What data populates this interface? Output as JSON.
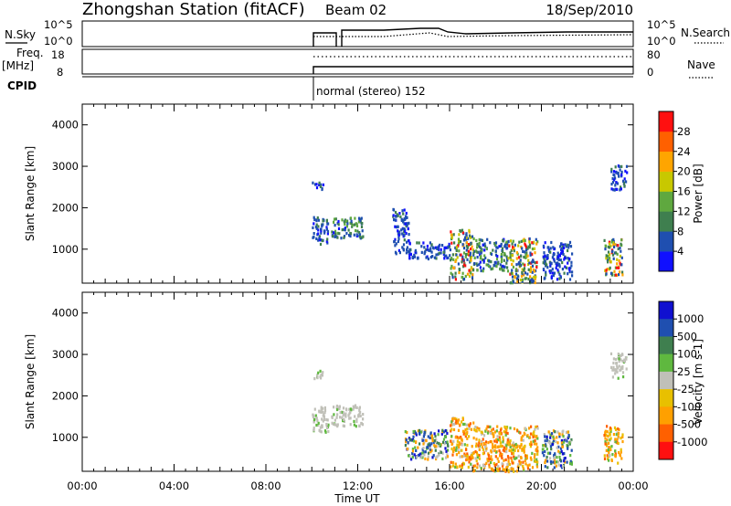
{
  "header": {
    "station": "Zhongshan Station (fitACF)",
    "beam": "Beam 02",
    "date": "18/Sep/2010"
  },
  "top_panel": {
    "nsky_label": "N.Sky",
    "nsky_ticks": [
      "10^5",
      "10^0"
    ],
    "nsearch_label": "N.Search",
    "nsearch_ticks": [
      "10^5",
      "10^0"
    ],
    "freq_label": "Freq.",
    "freq_unit": "[MHz]",
    "freq_ticks": [
      "18",
      "8"
    ],
    "nave_label": "Nave",
    "nave_ticks": [
      "80",
      "0"
    ],
    "cpid_label": "CPID",
    "cpid_text": "normal (stereo) 152"
  },
  "colors": {
    "power": [
      "#1010ff",
      "#1f4fb0",
      "#3f7f4f",
      "#5fa83f",
      "#c8c800",
      "#ffa500",
      "#ff6000",
      "#ff1010"
    ],
    "velocity": [
      "#ff1010",
      "#ff6000",
      "#ffa000",
      "#e8c000",
      "#c0c0b8",
      "#5fb83f",
      "#3f7f4f",
      "#1f4fb0",
      "#1010d0"
    ]
  },
  "chart_data": [
    {
      "type": "heatmap",
      "title": "Power",
      "ylabel": "Slant Range [km]",
      "xlabel": "Time UT",
      "xlim": [
        "00:00",
        "24:00"
      ],
      "ylim": [
        180,
        4500
      ],
      "x_ticks": [
        "00:00",
        "04:00",
        "08:00",
        "12:00",
        "16:00",
        "20:00",
        "00:00"
      ],
      "y_ticks": [
        1000,
        2000,
        3000,
        4000
      ],
      "colorbar": {
        "label": "Power [dB]",
        "ticks": [
          "4",
          "8",
          "12",
          "16",
          "20",
          "24",
          "28"
        ],
        "range": [
          0,
          30
        ]
      },
      "regions": [
        {
          "t": [
            10.0,
            10.5
          ],
          "r": [
            2450,
            2650
          ],
          "level": "low"
        },
        {
          "t": [
            10.0,
            10.7
          ],
          "r": [
            1150,
            1800
          ],
          "level": "low"
        },
        {
          "t": [
            10.8,
            12.2
          ],
          "r": [
            1300,
            1800
          ],
          "level": "low-mid"
        },
        {
          "t": [
            13.5,
            14.2
          ],
          "r": [
            900,
            2000
          ],
          "level": "low"
        },
        {
          "t": [
            14.2,
            16.0
          ],
          "r": [
            800,
            1200
          ],
          "level": "low"
        },
        {
          "t": [
            16.0,
            17.0
          ],
          "r": [
            300,
            1500
          ],
          "level": "mid-high"
        },
        {
          "t": [
            17.0,
            18.5
          ],
          "r": [
            500,
            1300
          ],
          "level": "low-mid"
        },
        {
          "t": [
            18.5,
            19.8
          ],
          "r": [
            200,
            1300
          ],
          "level": "mid-high"
        },
        {
          "t": [
            20.0,
            21.3
          ],
          "r": [
            300,
            1200
          ],
          "level": "low"
        },
        {
          "t": [
            22.7,
            23.5
          ],
          "r": [
            400,
            1300
          ],
          "level": "mid-high"
        },
        {
          "t": [
            23.0,
            23.7
          ],
          "r": [
            2450,
            3050
          ],
          "level": "low"
        }
      ]
    },
    {
      "type": "heatmap",
      "title": "Velocity",
      "ylabel": "Slant Range [km]",
      "xlabel": "Time UT",
      "xlim": [
        "00:00",
        "24:00"
      ],
      "ylim": [
        180,
        4500
      ],
      "x_ticks": [
        "00:00",
        "04:00",
        "08:00",
        "12:00",
        "16:00",
        "20:00",
        "00:00"
      ],
      "y_ticks": [
        1000,
        2000,
        3000,
        4000
      ],
      "colorbar": {
        "label": "Velocity [m s-1]",
        "ticks": [
          "1000",
          "500",
          "100",
          "25",
          "-25",
          "-100",
          "-500",
          "-1000"
        ]
      },
      "regions": [
        {
          "t": [
            10.0,
            10.5
          ],
          "r": [
            2450,
            2650
          ],
          "level": "near-zero"
        },
        {
          "t": [
            10.0,
            10.7
          ],
          "r": [
            1150,
            1800
          ],
          "level": "near-zero"
        },
        {
          "t": [
            10.8,
            12.2
          ],
          "r": [
            1300,
            1800
          ],
          "level": "near-zero"
        },
        {
          "t": [
            14.0,
            16.0
          ],
          "r": [
            500,
            1200
          ],
          "level": "mixed"
        },
        {
          "t": [
            16.0,
            17.0
          ],
          "r": [
            300,
            1500
          ],
          "level": "negative"
        },
        {
          "t": [
            17.0,
            19.8
          ],
          "r": [
            200,
            1300
          ],
          "level": "negative"
        },
        {
          "t": [
            20.0,
            21.3
          ],
          "r": [
            300,
            1200
          ],
          "level": "mixed"
        },
        {
          "t": [
            22.7,
            23.5
          ],
          "r": [
            400,
            1300
          ],
          "level": "negative"
        },
        {
          "t": [
            23.0,
            23.7
          ],
          "r": [
            2450,
            3050
          ],
          "level": "near-zero"
        }
      ]
    }
  ]
}
